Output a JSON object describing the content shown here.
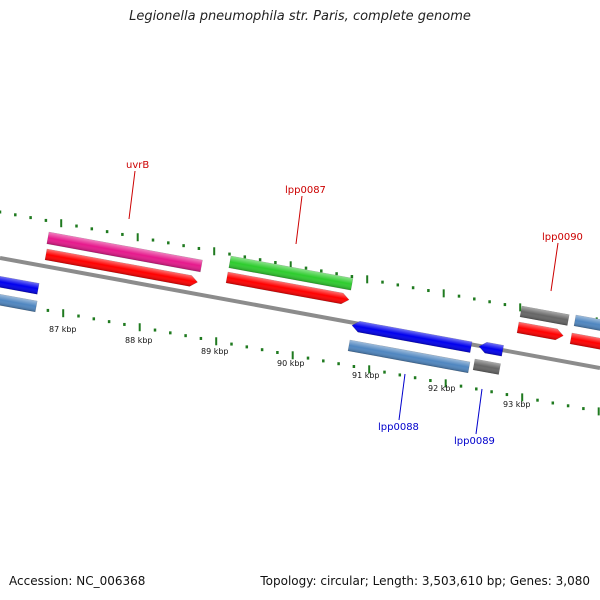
{
  "title": "Legionella pneumophila str. Paris, complete genome",
  "footer": {
    "accession": "Accession: NC_006368",
    "summary": "Topology: circular; Length: 3,503,610 bp; Genes: 3,080"
  },
  "colors": {
    "backbone": "#8c8c8c",
    "tick": "#1f7a1f",
    "top_label": "#cc0000",
    "bottom_label": "#0000cc",
    "pink": "#e6198c",
    "red": "#ff0000",
    "green": "#2ecc2e",
    "blue": "#0000ee",
    "steelblue": "#4f86c0",
    "gray": "#666666"
  },
  "axis_labels": [
    "87 kbp",
    "88 kbp",
    "89 kbp",
    "90 kbp",
    "91 kbp",
    "92 kbp",
    "93 kbp"
  ],
  "gene_labels": {
    "top": [
      "uvrB",
      "lpp0087",
      "lpp0090"
    ],
    "bottom": [
      "lpp0088",
      "lpp0089"
    ]
  }
}
